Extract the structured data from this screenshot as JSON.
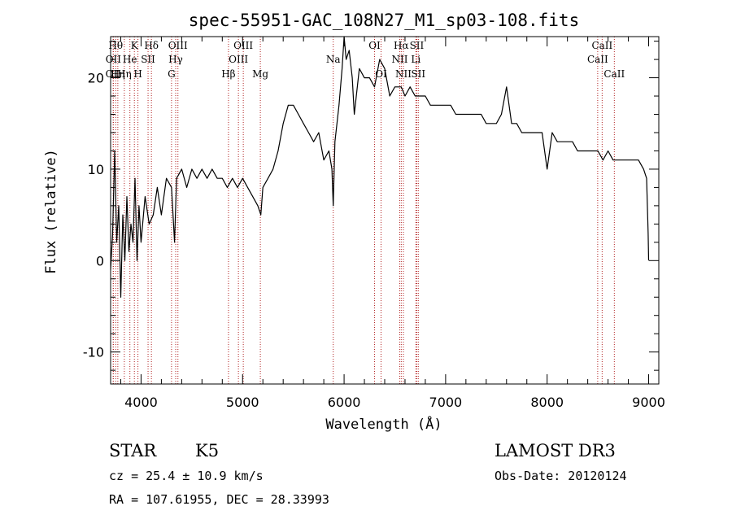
{
  "chart_data": {
    "type": "line",
    "title": "spec-55951-GAC_108N27_M1_sp03-108.fits",
    "xlabel": "Wavelength (Å)",
    "ylabel": "Flux (relative)",
    "xlim": [
      3700,
      9100
    ],
    "ylim": [
      -13.5,
      24.5
    ],
    "x_ticks": [
      4000,
      5000,
      6000,
      7000,
      8000,
      9000
    ],
    "y_ticks": [
      -10,
      0,
      10,
      20
    ],
    "grid": false,
    "series": [
      {
        "x": [
          3700,
          3720,
          3740,
          3760,
          3780,
          3800,
          3820,
          3840,
          3860,
          3880,
          3900,
          3920,
          3940,
          3960,
          3980,
          4000,
          4040,
          4080,
          4120,
          4160,
          4200,
          4250,
          4300,
          4330,
          4350,
          4400,
          4450,
          4500,
          4550,
          4600,
          4650,
          4700,
          4750,
          4800,
          4850,
          4900,
          4950,
          5000,
          5050,
          5100,
          5150,
          5180,
          5200,
          5250,
          5300,
          5350,
          5400,
          5450,
          5500,
          5550,
          5600,
          5650,
          5700,
          5750,
          5800,
          5850,
          5880,
          5893,
          5910,
          5950,
          5980,
          6000,
          6020,
          6050,
          6080,
          6100,
          6150,
          6200,
          6250,
          6300,
          6350,
          6400,
          6450,
          6500,
          6563,
          6600,
          6650,
          6700,
          6750,
          6800,
          6850,
          6900,
          6950,
          7000,
          7050,
          7100,
          7150,
          7200,
          7250,
          7300,
          7350,
          7400,
          7450,
          7500,
          7550,
          7600,
          7650,
          7700,
          7750,
          7800,
          7850,
          7900,
          7950,
          8000,
          8050,
          8100,
          8150,
          8200,
          8250,
          8300,
          8350,
          8400,
          8450,
          8500,
          8550,
          8600,
          8650,
          8700,
          8750,
          8800,
          8850,
          8900,
          8950,
          8980,
          8995,
          9000
        ],
        "y": [
          -1,
          3,
          12,
          2,
          6,
          -4,
          5,
          0,
          7,
          1,
          4,
          2,
          9,
          0,
          6,
          2,
          7,
          4,
          5,
          8,
          5,
          9,
          8,
          2,
          9,
          10,
          8,
          10,
          9,
          10,
          9,
          10,
          9,
          9,
          8,
          9,
          8,
          9,
          8,
          7,
          6,
          5,
          8,
          9,
          10,
          12,
          15,
          17,
          17,
          16,
          15,
          14,
          13,
          14,
          11,
          12,
          10,
          6,
          13,
          17,
          21,
          25,
          22,
          23,
          20,
          16,
          21,
          20,
          20,
          19,
          22,
          21,
          18,
          19,
          19,
          18,
          19,
          18,
          18,
          18,
          17,
          17,
          17,
          17,
          17,
          16,
          16,
          16,
          16,
          16,
          16,
          15,
          15,
          15,
          16,
          19,
          15,
          15,
          14,
          14,
          14,
          14,
          14,
          10,
          14,
          13,
          13,
          13,
          13,
          12,
          12,
          12,
          12,
          12,
          11,
          12,
          11,
          11,
          11,
          11,
          11,
          11,
          10,
          9,
          3,
          0
        ]
      }
    ],
    "line_markers": [
      {
        "wavelength": 3750,
        "label": "Hθ",
        "row": 0
      },
      {
        "wavelength": 3727,
        "label": "OII",
        "row": 1
      },
      {
        "wavelength": 3726,
        "label": "OII",
        "row": 2
      },
      {
        "wavelength": 3771,
        "label": "Hη",
        "row": 2
      },
      {
        "wavelength": 3835,
        "label": "Hη",
        "row": 2
      },
      {
        "wavelength": 3890,
        "label": "He",
        "row": 1
      },
      {
        "wavelength": 3934,
        "label": "K",
        "row": 0
      },
      {
        "wavelength": 3969,
        "label": "H",
        "row": 2
      },
      {
        "wavelength": 4069,
        "label": "SII",
        "row": 1
      },
      {
        "wavelength": 4102,
        "label": "Hδ",
        "row": 0
      },
      {
        "wavelength": 4300,
        "label": "G",
        "row": 2
      },
      {
        "wavelength": 4341,
        "label": "Hγ",
        "row": 1
      },
      {
        "wavelength": 4363,
        "label": "OIII",
        "row": 0
      },
      {
        "wavelength": 4861,
        "label": "Hβ",
        "row": 2
      },
      {
        "wavelength": 4959,
        "label": "OIII",
        "row": 1
      },
      {
        "wavelength": 5007,
        "label": "OIII",
        "row": 0
      },
      {
        "wavelength": 5175,
        "label": "Mg",
        "row": 2
      },
      {
        "wavelength": 5893,
        "label": "Na",
        "row": 1
      },
      {
        "wavelength": 6300,
        "label": "OI",
        "row": 0
      },
      {
        "wavelength": 6364,
        "label": "OI",
        "row": 2
      },
      {
        "wavelength": 6548,
        "label": "NII",
        "row": 1
      },
      {
        "wavelength": 6563,
        "label": "Hα",
        "row": 0
      },
      {
        "wavelength": 6584,
        "label": "NII",
        "row": 2
      },
      {
        "wavelength": 6707,
        "label": "Li",
        "row": 1
      },
      {
        "wavelength": 6716,
        "label": "SII",
        "row": 0
      },
      {
        "wavelength": 6731,
        "label": "SII",
        "row": 2
      },
      {
        "wavelength": 8498,
        "label": "CaII",
        "row": 1
      },
      {
        "wavelength": 8542,
        "label": "CaII",
        "row": 0
      },
      {
        "wavelength": 8662,
        "label": "CaII",
        "row": 2
      }
    ]
  },
  "info": {
    "object_class": "STAR",
    "subclass": "K5",
    "redshift": "cz = 25.4 ± 10.9 km/s",
    "coordinates": "RA = 107.61955, DEC =  28.33993",
    "survey": "LAMOST DR3",
    "obs_date": "Obs-Date: 20120124"
  },
  "colors": {
    "spectrum": "#000000",
    "line_marker": "#b22222",
    "axis": "#000000",
    "background": "#ffffff"
  }
}
